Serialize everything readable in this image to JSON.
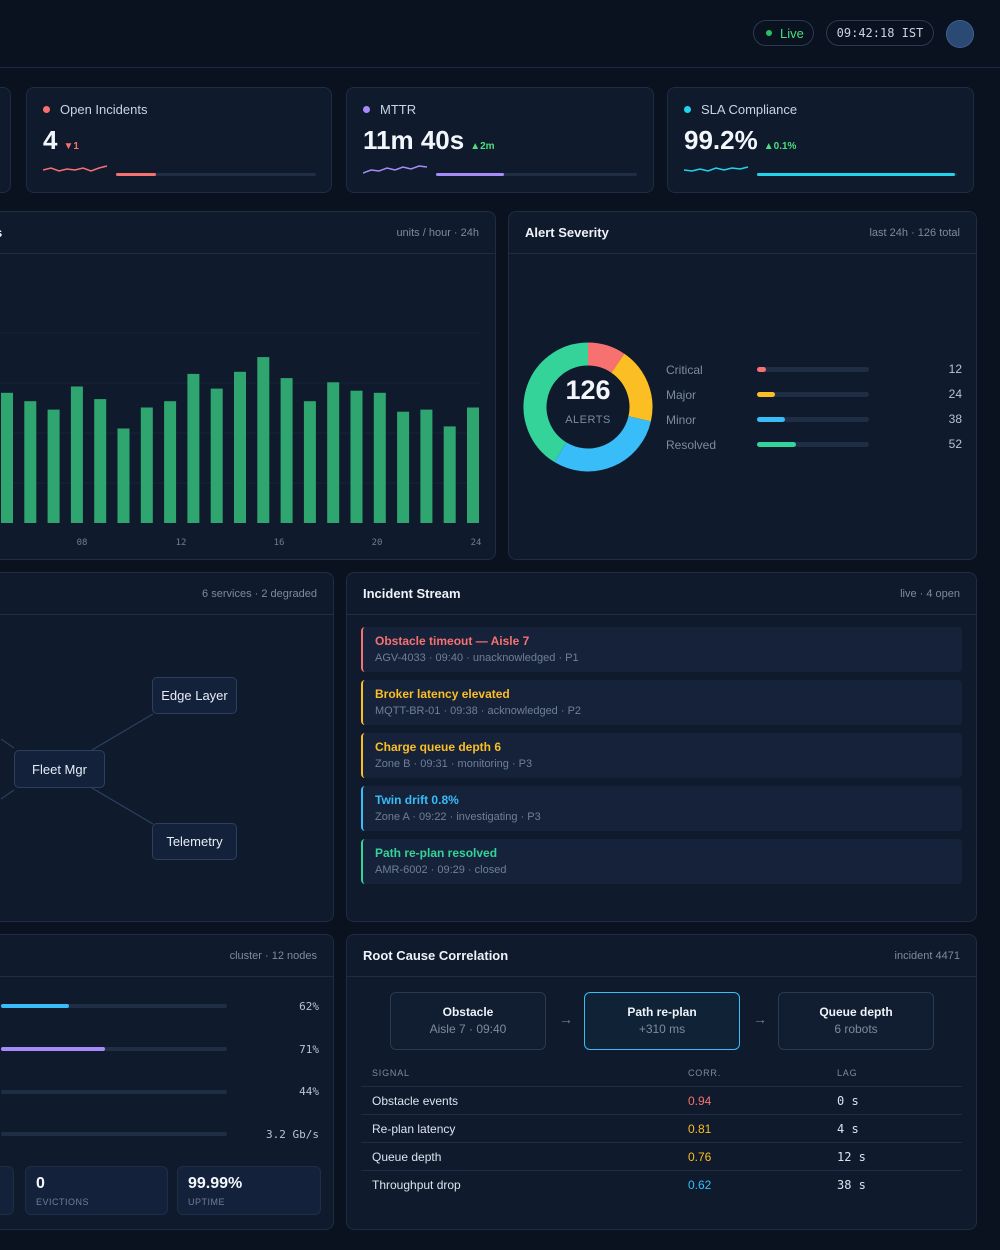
{
  "header": {
    "live_label": "Live",
    "clock": "09:42:18 IST"
  },
  "kpis": [
    {
      "label": "Open Incidents",
      "value": "4",
      "delta": "▼1",
      "dot_color": "#f87171",
      "delta_color": "#f87171",
      "progress": 0.2,
      "color": "#f87171"
    },
    {
      "label": "MTTR",
      "value": "11m 40s",
      "delta": "▲2m",
      "dot_color": "#a78bfa",
      "delta_color": "#4ade80",
      "progress": 0.34,
      "color": "#a78bfa"
    },
    {
      "label": "SLA Compliance",
      "value": "99.2%",
      "delta": "▲0.1%",
      "dot_color": "#22d3ee",
      "delta_color": "#4ade80",
      "progress": 0.99,
      "color": "#22d3ee"
    }
  ],
  "throughput": {
    "title": "s",
    "meta": "units / hour · 24h",
    "chart_data": {
      "type": "bar",
      "x_ticks": [
        "08",
        "12",
        "16",
        "20",
        "24"
      ],
      "values": [
        0.62,
        0.58,
        0.54,
        0.65,
        0.59,
        0.45,
        0.55,
        0.58,
        0.71,
        0.64,
        0.72,
        0.79,
        0.69,
        0.58,
        0.67,
        0.63,
        0.62,
        0.53,
        0.54,
        0.46,
        0.55
      ],
      "color": "#2fa66f",
      "grid": true
    }
  },
  "severity": {
    "title": "Alert Severity",
    "meta": "last 24h · 126 total",
    "total": "126",
    "total_label": "ALERTS",
    "items": [
      {
        "label": "Critical",
        "count": "12",
        "value": 12,
        "color": "#f87171"
      },
      {
        "label": "Major",
        "count": "24",
        "value": 24,
        "color": "#fbbf24"
      },
      {
        "label": "Minor",
        "count": "38",
        "value": 38,
        "color": "#38bdf8"
      },
      {
        "label": "Resolved",
        "count": "52",
        "value": 52,
        "color": "#34d399"
      }
    ]
  },
  "topology": {
    "meta": "6 services · 2 degraded",
    "nodes": [
      "Edge Layer",
      "Fleet Mgr",
      "Telemetry"
    ]
  },
  "incidents": {
    "title": "Incident Stream",
    "meta": "live · 4 open",
    "items": [
      {
        "title": "Obstacle timeout — Aisle 7",
        "sub": "AGV-4033 · 09:40 · unacknowledged · P1",
        "color": "#f87171"
      },
      {
        "title": "Broker latency elevated",
        "sub": "MQTT-BR-01 · 09:38 · acknowledged · P2",
        "color": "#fbbf24"
      },
      {
        "title": "Charge queue depth 6",
        "sub": "Zone B · 09:31 · monitoring · P3",
        "color": "#fbbf24"
      },
      {
        "title": "Twin drift 0.8%",
        "sub": "Zone A · 09:22 · investigating · P3",
        "color": "#38bdf8"
      },
      {
        "title": "Path re-plan resolved",
        "sub": "AMR-6002 · 09:29 · closed",
        "color": "#34d399"
      }
    ]
  },
  "cluster": {
    "meta": "cluster · 12 nodes",
    "bars": [
      {
        "value": "62%",
        "fill": 0.3,
        "color": "#38bdf8"
      },
      {
        "value": "71%",
        "fill": 0.46,
        "color": "#a78bfa"
      },
      {
        "value": "44%",
        "fill": 0,
        "color": "#34d399"
      },
      {
        "value": "3.2 Gb/s",
        "fill": 0,
        "color": "#fbbf24"
      }
    ],
    "stats": [
      {
        "value": "0",
        "label": "EVICTIONS"
      },
      {
        "value": "99.99%",
        "label": "UPTIME"
      }
    ]
  },
  "root_cause": {
    "title": "Root Cause Correlation",
    "meta": "incident 4471",
    "chain": [
      {
        "title": "Obstacle",
        "sub": "Aisle 7 · 09:40"
      },
      {
        "title": "Path re-plan",
        "sub": "+310 ms"
      },
      {
        "title": "Queue depth",
        "sub": "6 robots"
      }
    ],
    "arrow": "→",
    "headers": {
      "signal": "SIGNAL",
      "corr": "CORR.",
      "lag": "LAG"
    },
    "rows": [
      {
        "signal": "Obstacle events",
        "corr": "0.94",
        "lag": "0 s",
        "color": "#f87171"
      },
      {
        "signal": "Re-plan latency",
        "corr": "0.81",
        "lag": "4 s",
        "color": "#fbbf24"
      },
      {
        "signal": "Queue depth",
        "corr": "0.76",
        "lag": "12 s",
        "color": "#fbbf24"
      },
      {
        "signal": "Throughput drop",
        "corr": "0.62",
        "lag": "38 s",
        "color": "#38bdf8"
      }
    ]
  }
}
